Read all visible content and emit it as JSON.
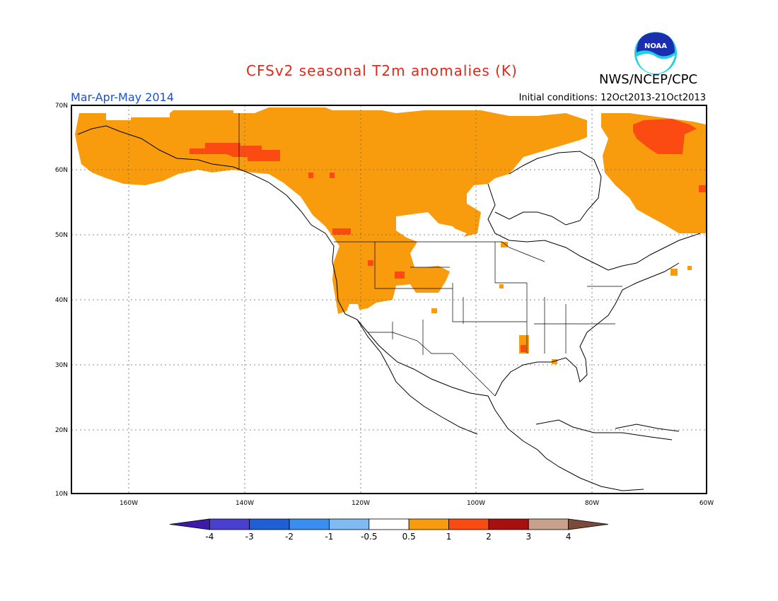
{
  "title": "CFSv2 seasonal T2m anomalies (K)",
  "agency": "NWS/NCEP/CPC",
  "logo_text": "NOAA",
  "period": "Mar-Apr-May 2014",
  "initial_conditions": "Initial conditions: 12Oct2013-21Oct2013",
  "lat_labels": [
    "70N",
    "60N",
    "50N",
    "40N",
    "30N",
    "20N",
    "10N"
  ],
  "lon_labels": [
    "160W",
    "140W",
    "120W",
    "100W",
    "80W",
    "60W"
  ],
  "colorbar": {
    "labels": [
      "-4",
      "-3",
      "-2",
      "-1",
      "-0.5",
      "0.5",
      "1",
      "2",
      "3",
      "4"
    ],
    "colors": [
      "#3d1aa8",
      "#4b3fd1",
      "#1f5fd6",
      "#3a8ef0",
      "#7fbaf5",
      "#ffffff",
      "#f89c0e",
      "#fb4a12",
      "#a80f0f",
      "#c9a08c",
      "#7a4b3a"
    ]
  },
  "anomaly_colors": {
    "warm_0p5_1": "#f89c0e",
    "warm_1_2": "#fb4a12"
  }
}
